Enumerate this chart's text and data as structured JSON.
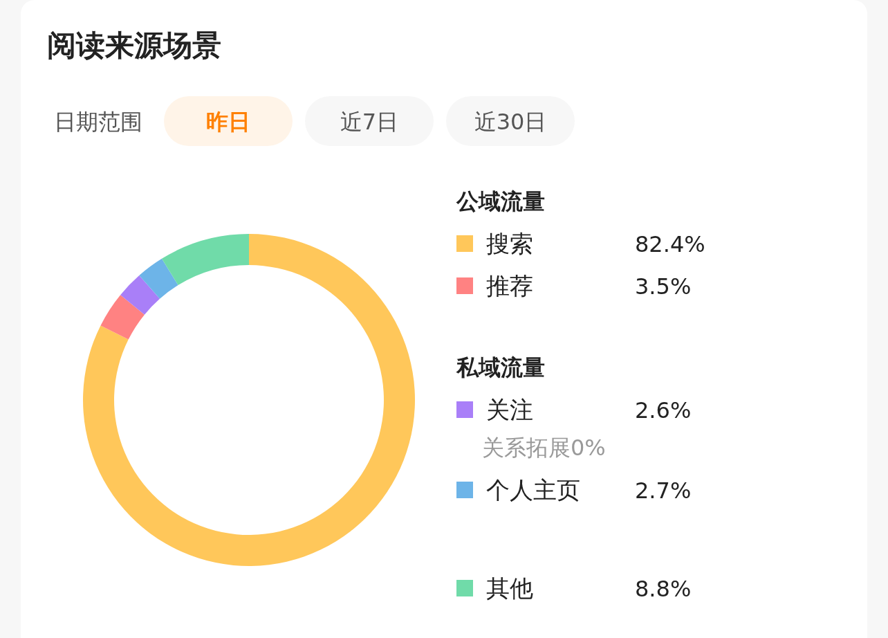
{
  "chart_data": {
    "type": "donut",
    "title": "阅读来源场景",
    "categories": [
      "搜索",
      "推荐",
      "关注",
      "个人主页",
      "其他"
    ],
    "values": [
      82.4,
      3.5,
      2.6,
      2.7,
      8.8
    ],
    "colors": [
      "#ffc75a",
      "#ff8282",
      "#a97ff8",
      "#6db4e8",
      "#70dba9"
    ],
    "value_labels": [
      "82.4%",
      "3.5%",
      "2.6%",
      "2.7%",
      "8.8%"
    ],
    "legend": "right",
    "annotations": [
      "日期范围",
      "昨日",
      "近7日",
      "近30日",
      "公域流量",
      "私域流量",
      "关系拓展0%"
    ]
  }
}
